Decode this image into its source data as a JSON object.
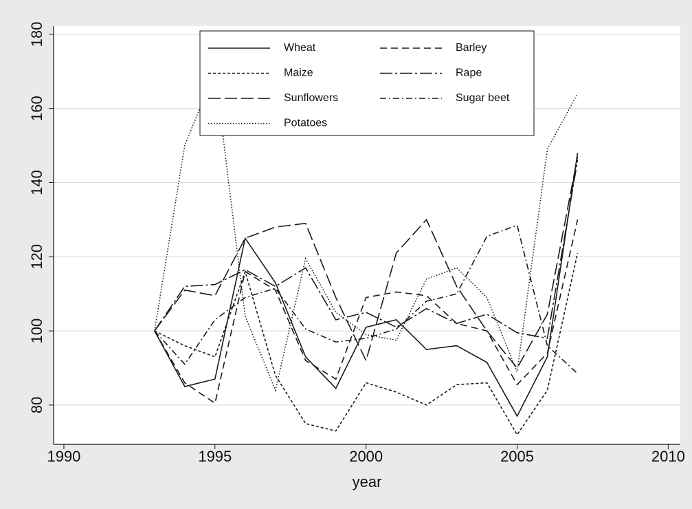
{
  "chart_data": {
    "type": "line",
    "x_label": "year",
    "x": [
      1993,
      1994,
      1995,
      1996,
      1997,
      1998,
      1999,
      2000,
      2001,
      2002,
      2003,
      2004,
      2005,
      2006,
      2007
    ],
    "series": [
      {
        "name": "Wheat",
        "color": "#1a1a1a",
        "dash": "none",
        "values": [
          100,
          85,
          87,
          125,
          113,
          93,
          84.5,
          101,
          103,
          95,
          96,
          91.5,
          77,
          93,
          148
        ]
      },
      {
        "name": "Barley",
        "color": "#1a1a1a",
        "dash": "10,6",
        "values": [
          100,
          86,
          80.5,
          116,
          111,
          92,
          87,
          109,
          110.5,
          109.5,
          102,
          100,
          85.5,
          94,
          130
        ]
      },
      {
        "name": "Maize",
        "color": "#1a1a1a",
        "dash": "4,3",
        "values": [
          100,
          96,
          93,
          116,
          88,
          75,
          73,
          86,
          83.5,
          80,
          85.5,
          86,
          72,
          84,
          121
        ]
      },
      {
        "name": "Rape",
        "color": "#1a1a1a",
        "dash": "18,4,3,4",
        "values": [
          100,
          112,
          112.5,
          116.5,
          112,
          117,
          103,
          105,
          101,
          106,
          102,
          104.5,
          99.5,
          98,
          146
        ]
      },
      {
        "name": "Sunflowers",
        "color": "#1a1a1a",
        "dash": "18,6",
        "values": [
          100,
          111,
          109.5,
          125,
          128,
          129,
          109,
          92,
          121,
          130,
          112,
          100,
          90,
          104.5,
          147
        ]
      },
      {
        "name": "Sugar beet",
        "color": "#1a1a1a",
        "dash": "9,4,2,4",
        "values": [
          100,
          91,
          103,
          109,
          111.5,
          100.5,
          97,
          98,
          100.5,
          108,
          110,
          125.5,
          128.5,
          96,
          88.5
        ]
      },
      {
        "name": "Potatoes",
        "color": "#1a1a1a",
        "dash": "1.5,2.5",
        "values": [
          100,
          150,
          170,
          104,
          84,
          119.5,
          105,
          99,
          97.5,
          114,
          117,
          109,
          89,
          149,
          164
        ]
      }
    ],
    "xlim": [
      1989.66,
      2010.4
    ],
    "ylim": [
      69.4,
      182.2
    ],
    "xticks": [
      1990,
      1995,
      2000,
      2005,
      2010
    ],
    "yticks": [
      80,
      100,
      120,
      140,
      160,
      180
    ],
    "grid": true,
    "legend": "top"
  }
}
